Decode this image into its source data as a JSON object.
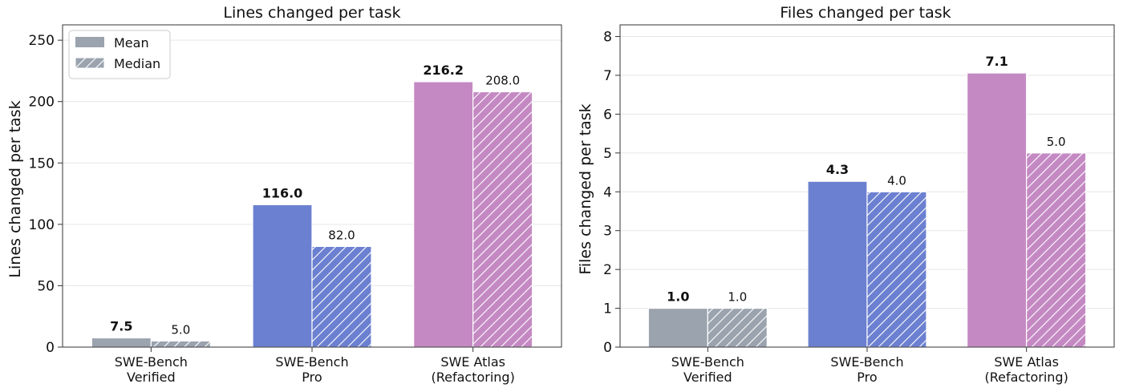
{
  "chart_data": [
    {
      "type": "bar",
      "title": "Lines changed per task",
      "xlabel": "",
      "ylabel": "Lines changed per task",
      "categories": [
        "SWE-Bench\nVerified",
        "SWE-Bench\nPro",
        "SWE Atlas\n(Refactoring)"
      ],
      "series": [
        {
          "name": "Mean",
          "values": [
            7.5,
            116.0,
            216.2
          ]
        },
        {
          "name": "Median",
          "values": [
            5.0,
            82.0,
            208.0
          ]
        }
      ],
      "value_labels": {
        "Mean": [
          "7.5",
          "116.0",
          "216.2"
        ],
        "Median": [
          "5.0",
          "82.0",
          "208.0"
        ]
      },
      "ylim": [
        0,
        262.5
      ],
      "yticks": [
        "0",
        "50",
        "100",
        "150",
        "200",
        "250"
      ],
      "grid": "horizontal",
      "legend": "top-left"
    },
    {
      "type": "bar",
      "title": "Files changed per task",
      "xlabel": "",
      "ylabel": "Files changed per task",
      "categories": [
        "SWE-Bench\nVerified",
        "SWE-Bench\nPro",
        "SWE Atlas\n(Refactoring)"
      ],
      "series": [
        {
          "name": "Mean",
          "values": [
            1.0,
            4.27,
            7.06
          ]
        },
        {
          "name": "Median",
          "values": [
            1.0,
            4.0,
            5.0
          ]
        }
      ],
      "value_labels": {
        "Mean": [
          "1.0",
          "4.3",
          "7.1"
        ],
        "Median": [
          "1.0",
          "4.0",
          "5.0"
        ]
      },
      "ylim": [
        0,
        8.3
      ],
      "yticks": [
        "0",
        "1",
        "2",
        "3",
        "4",
        "5",
        "6",
        "7",
        "8"
      ],
      "grid": "horizontal",
      "legend": "none"
    }
  ],
  "colors": {
    "category": [
      "#9aa3ae",
      "#6b80d0",
      "#c489c3"
    ],
    "median_stripe": "#ffffff",
    "grid": "#e6e6e6",
    "axis": "#333333"
  }
}
